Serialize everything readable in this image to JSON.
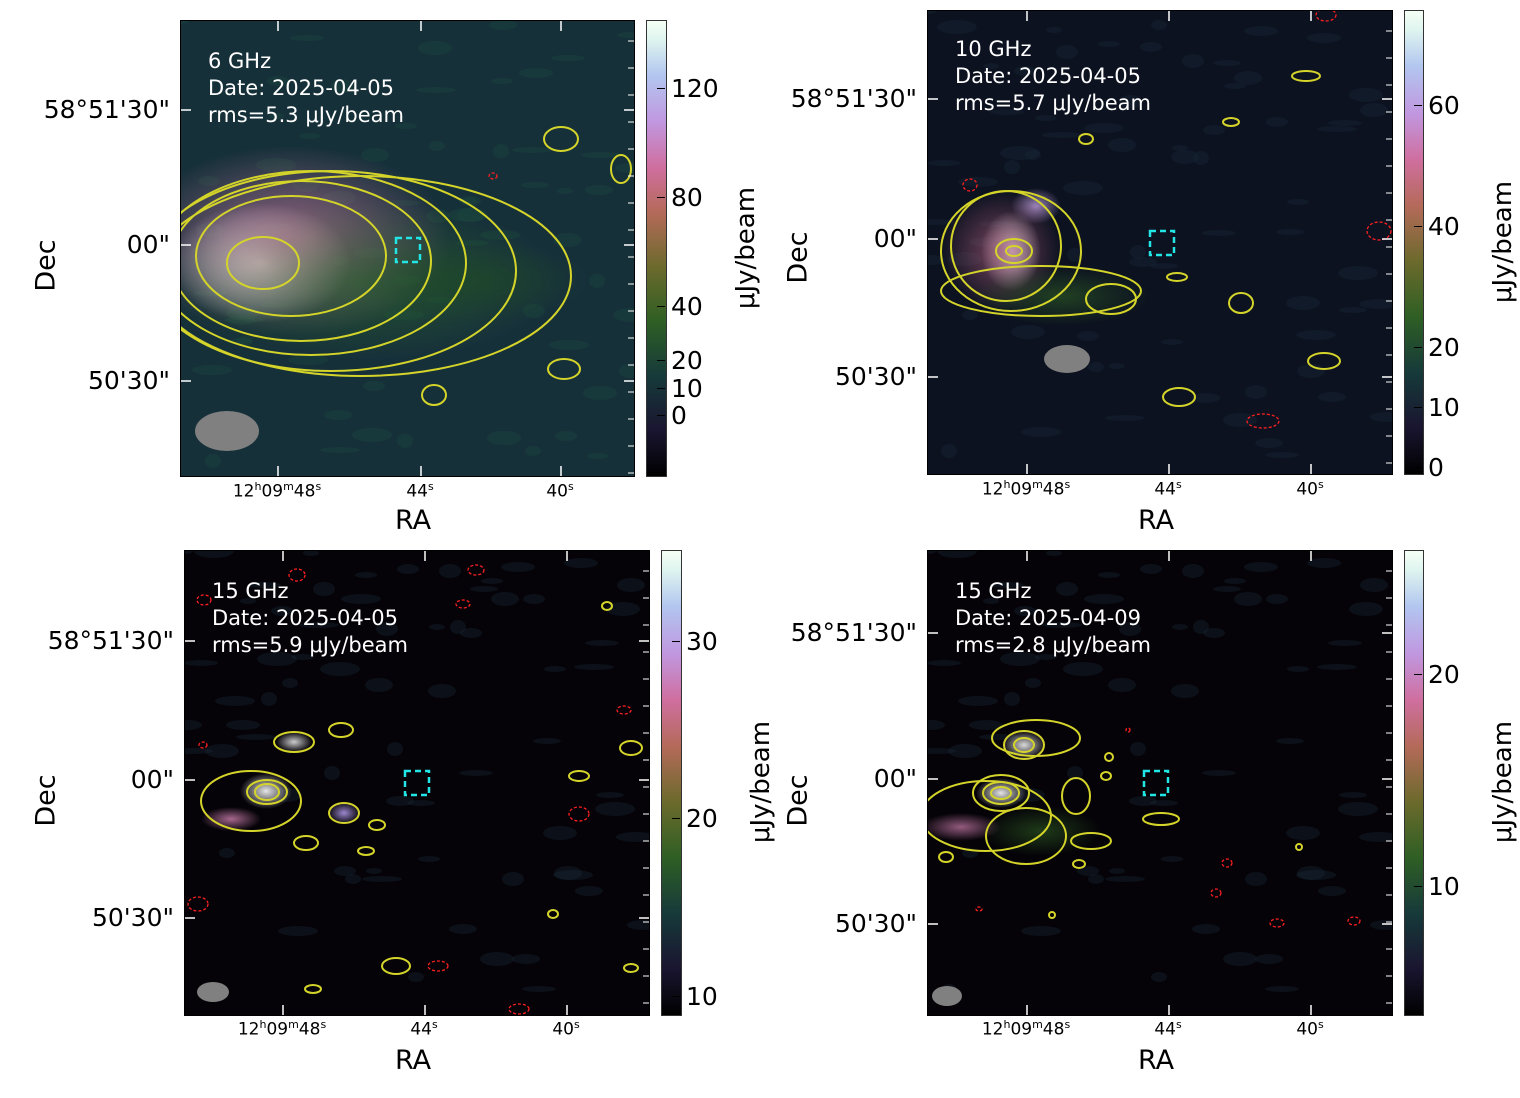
{
  "chart_data": [
    {
      "type": "heatmap",
      "panel": "top-left",
      "annotation": [
        "6 GHz",
        "Date: 2025-04-05",
        "rms=5.3 μJy/beam"
      ],
      "xlabel": "RA",
      "ylabel": "Dec",
      "xticks": [
        "12h09m48s",
        "44s",
        "40s"
      ],
      "yticks": [
        "58°51'30\"",
        "00\"",
        "50'30\""
      ],
      "colorbar": {
        "label": "μJy/beam",
        "ticks": [
          "120",
          "80",
          "40",
          "20",
          "10",
          "0"
        ],
        "colormap": "cubehelix"
      },
      "contour_color": "#d4d42a",
      "negative_contour_color": "#ff2020",
      "marker_color": "#22e5e5",
      "beam_color": "#808080"
    },
    {
      "type": "heatmap",
      "panel": "top-right",
      "annotation": [
        "10 GHz",
        "Date: 2025-04-05",
        "rms=5.7 μJy/beam"
      ],
      "xlabel": "RA",
      "ylabel": "Dec",
      "xticks": [
        "12h09m48s",
        "44s",
        "40s"
      ],
      "yticks": [
        "58°51'30\"",
        "00\"",
        "50'30\""
      ],
      "colorbar": {
        "label": "μJy/beam",
        "ticks": [
          "60",
          "40",
          "20",
          "10",
          "0"
        ],
        "colormap": "cubehelix"
      }
    },
    {
      "type": "heatmap",
      "panel": "bottom-left",
      "annotation": [
        "15 GHz",
        "Date: 2025-04-05",
        "rms=5.9 μJy/beam"
      ],
      "xlabel": "RA",
      "ylabel": "Dec",
      "xticks": [
        "12h09m48s",
        "44s",
        "40s"
      ],
      "yticks": [
        "58°51'30\"",
        "00\"",
        "50'30\""
      ],
      "colorbar": {
        "label": "μJy/beam",
        "ticks": [
          "30",
          "20",
          "10"
        ],
        "colormap": "cubehelix"
      }
    },
    {
      "type": "heatmap",
      "panel": "bottom-right",
      "annotation": [
        "15 GHz",
        "Date: 2025-04-09",
        "rms=2.8 μJy/beam"
      ],
      "xlabel": "RA",
      "ylabel": "Dec",
      "xticks": [
        "12h09m48s",
        "44s",
        "40s"
      ],
      "yticks": [
        "58°51'30\"",
        "00\"",
        "50'30\""
      ],
      "colorbar": {
        "label": "μJy/beam",
        "ticks": [
          "20",
          "10"
        ],
        "colormap": "cubehelix"
      }
    }
  ]
}
